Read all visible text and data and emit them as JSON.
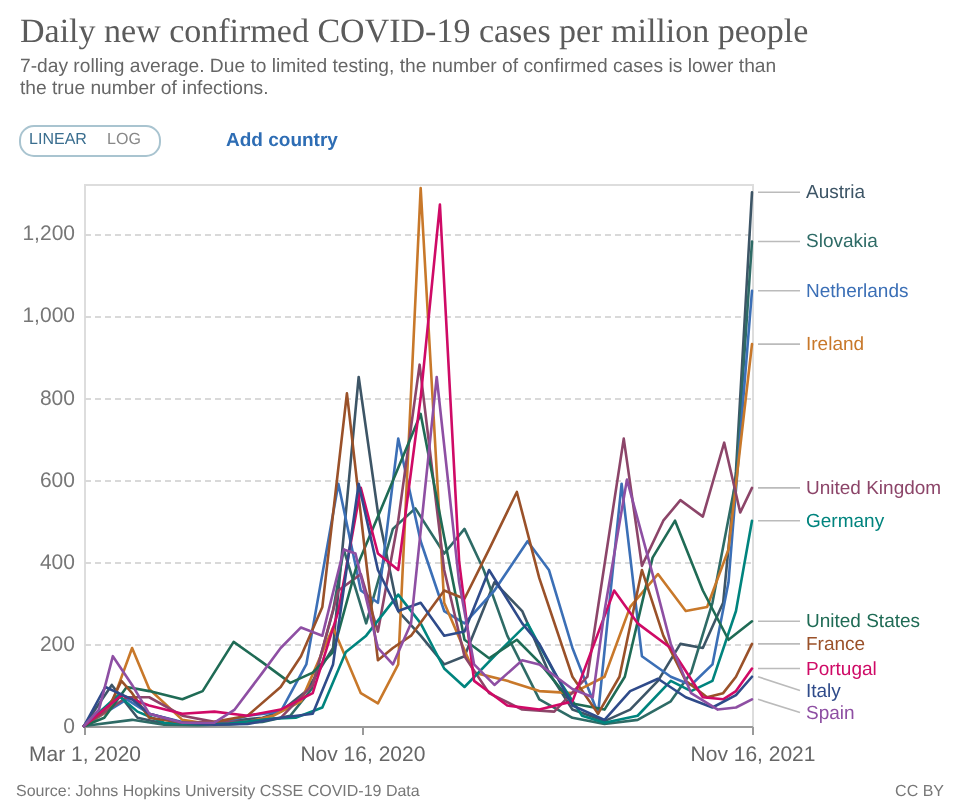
{
  "chart_data": {
    "type": "line",
    "title": "Daily new confirmed COVID-19 cases per million people",
    "subtitle": "7-day rolling average. Due to limited testing, the number of confirmed cases is lower than the true number of infections.",
    "xlim": [
      "2020-03-01",
      "2021-11-16"
    ],
    "xticks": [
      {
        "value": "2020-03-01",
        "label": "Mar 1, 2020"
      },
      {
        "value": "2020-11-16",
        "label": "Nov 16, 2020"
      },
      {
        "value": "2021-11-16",
        "label": "Nov 16, 2021"
      }
    ],
    "ylim": [
      0,
      1320
    ],
    "yticks": [
      0,
      200,
      400,
      600,
      800,
      {
        "value": 1000,
        "label": "1,000"
      },
      {
        "value": 1200,
        "label": "1,200"
      }
    ],
    "grid": "y",
    "annotations": [
      "LINEAR",
      "LOG",
      "Add country",
      "Source: Johns Hopkins University CSSE COVID-19 Data",
      "CC BY"
    ],
    "series": [
      {
        "name": "Austria",
        "color": "#3d5566",
        "x": [
          "2020-03-01",
          "2020-03-27",
          "2020-04-20",
          "2020-05-15",
          "2020-06-15",
          "2020-07-15",
          "2020-08-15",
          "2020-09-01",
          "2020-09-25",
          "2020-10-20",
          "2020-11-13",
          "2020-12-01",
          "2020-12-20",
          "2021-01-10",
          "2021-02-01",
          "2021-02-20",
          "2021-03-20",
          "2021-04-15",
          "2021-05-10",
          "2021-06-01",
          "2021-07-01",
          "2021-07-25",
          "2021-08-20",
          "2021-09-10",
          "2021-10-01",
          "2021-10-20",
          "2021-11-01",
          "2021-11-16"
        ],
        "values": [
          0,
          100,
          20,
          6,
          5,
          12,
          20,
          35,
          85,
          190,
          850,
          520,
          280,
          220,
          150,
          170,
          350,
          280,
          130,
          40,
          12,
          40,
          110,
          200,
          190,
          300,
          620,
          1300
        ]
      },
      {
        "name": "Slovakia",
        "color": "#2e6b66",
        "x": [
          "2020-03-01",
          "2020-04-15",
          "2020-05-15",
          "2020-06-15",
          "2020-07-15",
          "2020-08-15",
          "2020-09-10",
          "2020-09-30",
          "2020-10-20",
          "2020-10-30",
          "2020-11-20",
          "2020-12-15",
          "2021-01-05",
          "2021-02-01",
          "2021-02-20",
          "2021-03-10",
          "2021-04-01",
          "2021-05-01",
          "2021-06-01",
          "2021-07-01",
          "2021-08-01",
          "2021-09-01",
          "2021-09-20",
          "2021-10-10",
          "2021-11-01",
          "2021-11-16"
        ],
        "values": [
          0,
          15,
          3,
          2,
          4,
          10,
          25,
          90,
          280,
          430,
          250,
          480,
          530,
          420,
          480,
          380,
          220,
          65,
          20,
          5,
          15,
          60,
          130,
          300,
          600,
          1180
        ]
      },
      {
        "name": "Netherlands",
        "color": "#3b6fb6",
        "x": [
          "2020-03-01",
          "2020-04-10",
          "2020-05-01",
          "2020-06-01",
          "2020-07-01",
          "2020-08-01",
          "2020-09-01",
          "2020-09-25",
          "2020-10-25",
          "2020-11-15",
          "2020-12-01",
          "2020-12-20",
          "2021-01-10",
          "2021-02-01",
          "2021-02-20",
          "2021-03-20",
          "2021-04-20",
          "2021-05-10",
          "2021-06-01",
          "2021-06-25",
          "2021-07-17",
          "2021-08-05",
          "2021-09-01",
          "2021-09-20",
          "2021-10-10",
          "2021-10-25",
          "2021-11-16"
        ],
        "values": [
          0,
          65,
          30,
          10,
          3,
          25,
          35,
          150,
          590,
          330,
          300,
          700,
          450,
          280,
          250,
          330,
          450,
          380,
          190,
          30,
          590,
          170,
          120,
          100,
          150,
          350,
          1060
        ]
      },
      {
        "name": "Ireland",
        "color": "#c8782a",
        "x": [
          "2020-03-01",
          "2020-03-25",
          "2020-04-15",
          "2020-05-01",
          "2020-06-01",
          "2020-07-01",
          "2020-08-01",
          "2020-08-25",
          "2020-09-20",
          "2020-10-20",
          "2020-11-15",
          "2020-12-01",
          "2020-12-20",
          "2021-01-10",
          "2021-02-01",
          "2021-03-01",
          "2021-04-01",
          "2021-05-01",
          "2021-06-01",
          "2021-07-01",
          "2021-07-25",
          "2021-08-20",
          "2021-09-15",
          "2021-10-05",
          "2021-10-25",
          "2021-11-16"
        ],
        "values": [
          0,
          40,
          190,
          90,
          15,
          3,
          10,
          25,
          60,
          240,
          80,
          55,
          150,
          1310,
          300,
          130,
          110,
          85,
          80,
          120,
          290,
          370,
          280,
          290,
          430,
          930
        ]
      },
      {
        "name": "United Kingdom",
        "color": "#8c4569",
        "x": [
          "2020-03-01",
          "2020-04-10",
          "2020-05-01",
          "2020-06-01",
          "2020-07-01",
          "2020-08-01",
          "2020-09-01",
          "2020-10-01",
          "2020-10-25",
          "2020-11-15",
          "2020-12-01",
          "2020-12-20",
          "2021-01-09",
          "2021-02-01",
          "2021-02-20",
          "2021-03-15",
          "2021-04-15",
          "2021-05-15",
          "2021-06-15",
          "2021-07-19",
          "2021-08-05",
          "2021-08-25",
          "2021-09-10",
          "2021-10-01",
          "2021-10-21",
          "2021-11-05",
          "2021-11-16"
        ],
        "values": [
          0,
          70,
          70,
          25,
          10,
          11,
          20,
          100,
          330,
          370,
          230,
          500,
          880,
          380,
          170,
          80,
          40,
          35,
          120,
          700,
          390,
          500,
          550,
          510,
          690,
          520,
          580
        ]
      },
      {
        "name": "Germany",
        "color": "#00847e",
        "x": [
          "2020-03-01",
          "2020-04-02",
          "2020-04-20",
          "2020-05-15",
          "2020-06-15",
          "2020-07-15",
          "2020-08-25",
          "2020-09-15",
          "2020-10-10",
          "2020-11-01",
          "2020-11-20",
          "2020-12-20",
          "2021-01-10",
          "2021-02-01",
          "2021-02-20",
          "2021-03-20",
          "2021-04-20",
          "2021-05-15",
          "2021-06-10",
          "2021-07-01",
          "2021-08-01",
          "2021-09-01",
          "2021-09-20",
          "2021-10-10",
          "2021-11-01",
          "2021-11-16"
        ],
        "values": [
          0,
          75,
          35,
          8,
          5,
          6,
          18,
          20,
          45,
          180,
          220,
          320,
          250,
          140,
          95,
          170,
          250,
          130,
          25,
          8,
          25,
          110,
          85,
          110,
          280,
          500
        ]
      },
      {
        "name": "United States",
        "color": "#1f6b55",
        "x": [
          "2020-03-01",
          "2020-03-20",
          "2020-04-10",
          "2020-05-01",
          "2020-06-01",
          "2020-06-20",
          "2020-07-19",
          "2020-08-15",
          "2020-09-10",
          "2020-10-01",
          "2020-10-20",
          "2020-11-10",
          "2020-12-01",
          "2021-01-10",
          "2021-02-01",
          "2021-02-20",
          "2021-03-15",
          "2021-04-10",
          "2021-05-01",
          "2021-06-01",
          "2021-07-01",
          "2021-07-20",
          "2021-08-15",
          "2021-09-05",
          "2021-10-01",
          "2021-10-25",
          "2021-11-16"
        ],
        "values": [
          0,
          20,
          95,
          85,
          65,
          85,
          205,
          155,
          105,
          130,
          180,
          380,
          510,
          760,
          460,
          210,
          165,
          210,
          155,
          55,
          40,
          120,
          410,
          500,
          330,
          210,
          255
        ]
      },
      {
        "name": "France",
        "color": "#9a5129",
        "x": [
          "2020-03-01",
          "2020-03-25",
          "2020-04-05",
          "2020-04-15",
          "2020-05-01",
          "2020-06-01",
          "2020-07-01",
          "2020-08-01",
          "2020-09-01",
          "2020-09-20",
          "2020-10-10",
          "2020-11-02",
          "2020-11-20",
          "2020-12-01",
          "2020-12-15",
          "2021-01-01",
          "2021-02-01",
          "2021-02-20",
          "2021-03-15",
          "2021-04-10",
          "2021-05-01",
          "2021-06-01",
          "2021-06-25",
          "2021-07-15",
          "2021-08-05",
          "2021-08-25",
          "2021-09-15",
          "2021-10-05",
          "2021-10-20",
          "2021-11-01",
          "2021-11-16"
        ],
        "values": [
          0,
          50,
          110,
          80,
          20,
          8,
          10,
          25,
          95,
          170,
          290,
          810,
          400,
          160,
          190,
          220,
          330,
          310,
          430,
          570,
          360,
          120,
          30,
          120,
          380,
          220,
          110,
          70,
          80,
          120,
          200
        ]
      },
      {
        "name": "Portugal",
        "color": "#cf0a66",
        "x": [
          "2020-03-01",
          "2020-04-05",
          "2020-05-01",
          "2020-06-01",
          "2020-07-01",
          "2020-08-01",
          "2020-09-01",
          "2020-10-01",
          "2020-10-25",
          "2020-11-15",
          "2020-12-01",
          "2020-12-20",
          "2021-01-10",
          "2021-01-28",
          "2021-02-15",
          "2021-03-01",
          "2021-04-01",
          "2021-05-01",
          "2021-06-01",
          "2021-07-10",
          "2021-08-01",
          "2021-09-01",
          "2021-10-01",
          "2021-10-20",
          "2021-11-01",
          "2021-11-16"
        ],
        "values": [
          0,
          75,
          50,
          30,
          35,
          25,
          40,
          80,
          280,
          580,
          420,
          380,
          800,
          1270,
          400,
          110,
          50,
          40,
          60,
          330,
          250,
          190,
          70,
          65,
          85,
          140
        ]
      },
      {
        "name": "Italy",
        "color": "#2f4b8a",
        "x": [
          "2020-03-01",
          "2020-03-21",
          "2020-04-15",
          "2020-05-01",
          "2020-06-01",
          "2020-07-01",
          "2020-08-01",
          "2020-09-01",
          "2020-10-01",
          "2020-10-20",
          "2020-11-13",
          "2020-12-01",
          "2020-12-20",
          "2021-01-10",
          "2021-02-01",
          "2021-02-20",
          "2021-03-15",
          "2021-04-15",
          "2021-05-01",
          "2021-06-01",
          "2021-07-01",
          "2021-07-25",
          "2021-08-20",
          "2021-09-15",
          "2021-10-10",
          "2021-11-01",
          "2021-11-16"
        ],
        "values": [
          0,
          95,
          65,
          30,
          8,
          3,
          5,
          20,
          30,
          150,
          590,
          380,
          280,
          300,
          220,
          230,
          380,
          250,
          200,
          50,
          15,
          85,
          115,
          70,
          45,
          75,
          120
        ]
      },
      {
        "name": "Spain",
        "color": "#8e4fa3",
        "x": [
          "2020-03-01",
          "2020-03-15",
          "2020-03-28",
          "2020-04-15",
          "2020-05-01",
          "2020-06-01",
          "2020-07-01",
          "2020-07-20",
          "2020-08-15",
          "2020-09-01",
          "2020-09-20",
          "2020-10-10",
          "2020-10-30",
          "2020-11-10",
          "2020-12-01",
          "2020-12-15",
          "2021-01-01",
          "2021-01-25",
          "2021-02-15",
          "2021-03-01",
          "2021-03-20",
          "2021-04-15",
          "2021-05-01",
          "2021-06-01",
          "2021-06-20",
          "2021-07-01",
          "2021-07-22",
          "2021-08-15",
          "2021-09-01",
          "2021-09-20",
          "2021-10-15",
          "2021-11-01",
          "2021-11-16"
        ],
        "values": [
          0,
          40,
          170,
          100,
          30,
          8,
          8,
          40,
          130,
          190,
          240,
          220,
          430,
          420,
          190,
          150,
          250,
          850,
          350,
          150,
          100,
          160,
          150,
          90,
          70,
          280,
          600,
          370,
          200,
          80,
          40,
          45,
          65
        ]
      }
    ]
  }
}
